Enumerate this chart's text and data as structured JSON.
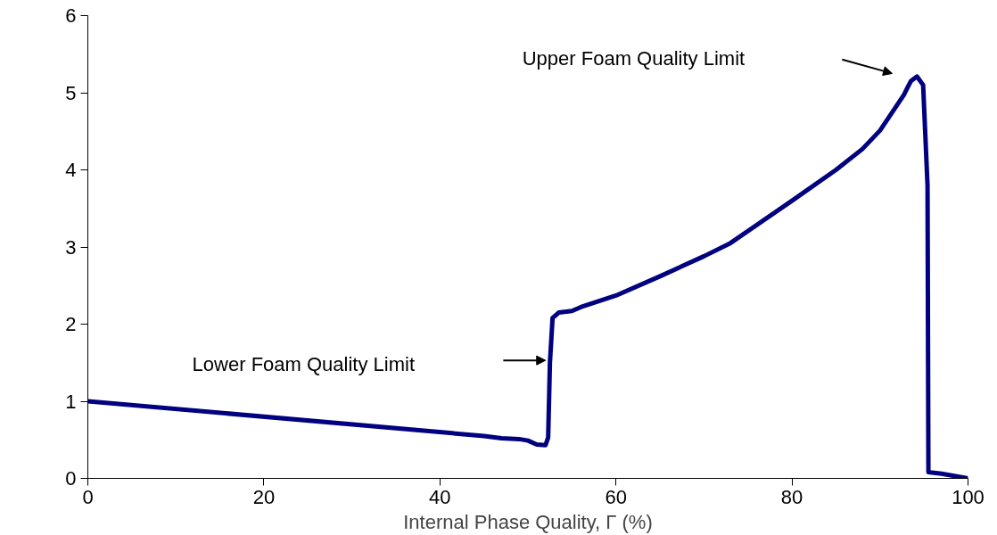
{
  "chart_data": {
    "type": "line",
    "xlabel": "Internal Phase Quality, Γ (%)",
    "xlim": [
      0,
      100
    ],
    "xticks": [
      0,
      20,
      40,
      60,
      80,
      100
    ],
    "ylim": [
      0,
      6
    ],
    "yticks": [
      0,
      1,
      2,
      3,
      4,
      5,
      6
    ],
    "grid": false,
    "marker": "none",
    "line_style": "solid",
    "series": [
      {
        "color": "#000080",
        "x": [
          0,
          45,
          47,
          49,
          50,
          51,
          52,
          52.3,
          52.5,
          52.8,
          53.5,
          55,
          56,
          60,
          65,
          70,
          73,
          80,
          85,
          88,
          90,
          92.7,
          93.5,
          94.2,
          94.9,
          95.4,
          95.5,
          97,
          100
        ],
        "values": [
          1.0,
          0.55,
          0.52,
          0.51,
          0.49,
          0.44,
          0.43,
          0.53,
          1.5,
          2.08,
          2.15,
          2.17,
          2.22,
          2.37,
          2.62,
          2.88,
          3.05,
          3.6,
          4.0,
          4.27,
          4.51,
          4.97,
          5.15,
          5.21,
          5.1,
          3.8,
          0.08,
          0.06,
          0.0
        ]
      }
    ],
    "annotations": [
      "Upper Foam Quality Limit",
      "Lower Foam Quality Limit"
    ]
  }
}
